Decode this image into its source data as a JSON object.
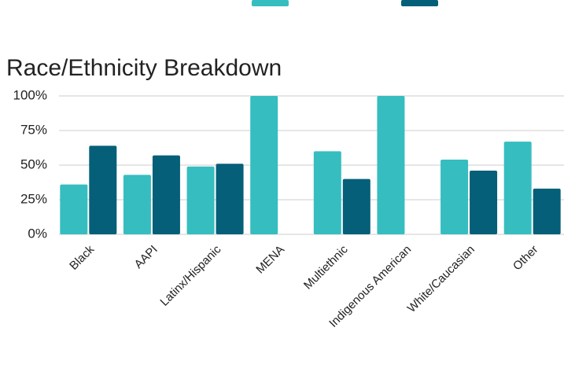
{
  "chart_data": {
    "type": "bar",
    "title": "Race/Ethnicity Breakdown",
    "categories": [
      "Black",
      "AAPI",
      "Latinx/Hispanic",
      "MENA",
      "Multiethnic",
      "Indigenous American",
      "White/Caucasian",
      "Other"
    ],
    "series": [
      {
        "color": "#36bdbf",
        "values": [
          36,
          43,
          49,
          100,
          60,
          100,
          54,
          67
        ]
      },
      {
        "color": "#055f78",
        "values": [
          64,
          57,
          51,
          0,
          40,
          0,
          46,
          33
        ]
      }
    ],
    "ylim": [
      0,
      100
    ],
    "yticks": [
      {
        "value": 0,
        "label": "0%"
      },
      {
        "value": 25,
        "label": "25%"
      },
      {
        "value": 50,
        "label": "50%"
      },
      {
        "value": 75,
        "label": "75%"
      },
      {
        "value": 100,
        "label": "100%"
      }
    ],
    "grid": true
  }
}
